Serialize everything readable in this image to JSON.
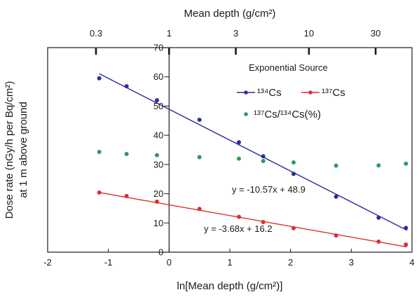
{
  "chart_data": {
    "type": "scatter",
    "title": "",
    "top_axis": {
      "label": "Mean depth (g/cm²)",
      "ticks": [
        {
          "value": 0.3,
          "label": "0.3"
        },
        {
          "value": 1,
          "label": "1"
        },
        {
          "value": 3,
          "label": "3"
        },
        {
          "value": 10,
          "label": "10"
        },
        {
          "value": 30,
          "label": "30"
        }
      ]
    },
    "xlabel": "ln[Mean depth (g/cm²)]",
    "ylabel_line1": "Dose rate (nGy/h per Bq/cm²)",
    "ylabel_line2": "at 1 m above ground",
    "xlim": [
      -2,
      4
    ],
    "ylim": [
      0,
      70
    ],
    "x_ticks": [
      -2,
      -1,
      0,
      1,
      2,
      3,
      4
    ],
    "y_ticks": [
      0,
      10,
      20,
      30,
      40,
      50,
      60,
      70
    ],
    "grid": false,
    "legend": {
      "title": "Exponential Source",
      "position": "top-right",
      "entries": [
        {
          "label": "¹³⁴Cs",
          "color": "#2d2d9c",
          "marker": "line-dot"
        },
        {
          "label": "¹³⁷Cs",
          "color": "#d9302a",
          "marker": "line-dot"
        },
        {
          "label": "¹³⁷Cs/¹³⁴Cs(%)",
          "color": "#2a9a6c",
          "marker": "dot"
        }
      ]
    },
    "series": [
      {
        "name": "¹³⁴Cs",
        "color": "#2d2d9c",
        "x": [
          -1.15,
          -0.7,
          -0.2,
          0.5,
          1.15,
          1.55,
          2.05,
          2.75,
          3.45,
          3.9
        ],
        "y": [
          59.5,
          56.8,
          52.0,
          45.3,
          37.6,
          32.8,
          26.8,
          19.0,
          11.8,
          8.3
        ]
      },
      {
        "name": "¹³⁷Cs",
        "color": "#d9302a",
        "x": [
          -1.15,
          -0.7,
          -0.2,
          0.5,
          1.15,
          1.55,
          2.05,
          2.75,
          3.45,
          3.9
        ],
        "y": [
          20.4,
          19.2,
          17.3,
          14.8,
          12.1,
          10.3,
          8.2,
          5.7,
          3.6,
          2.6
        ]
      },
      {
        "name": "¹³⁷Cs/¹³⁴Cs(%)",
        "color": "#2a9a6c",
        "x": [
          -1.15,
          -0.7,
          -0.2,
          0.5,
          1.15,
          1.55,
          2.05,
          2.75,
          3.45,
          3.9
        ],
        "y": [
          34.3,
          33.6,
          33.2,
          32.5,
          32.0,
          31.2,
          30.7,
          29.6,
          29.7,
          30.3
        ]
      }
    ],
    "fits": [
      {
        "equation": "y = -10.57x + 48.9",
        "slope": -10.57,
        "intercept": 48.9,
        "x_range": [
          -1.15,
          3.92
        ],
        "color": "#2d2d9c"
      },
      {
        "equation": "y = -3.68x + 16.2",
        "slope": -3.68,
        "intercept": 16.2,
        "x_range": [
          -1.15,
          3.92
        ],
        "color": "#d9302a"
      }
    ]
  }
}
